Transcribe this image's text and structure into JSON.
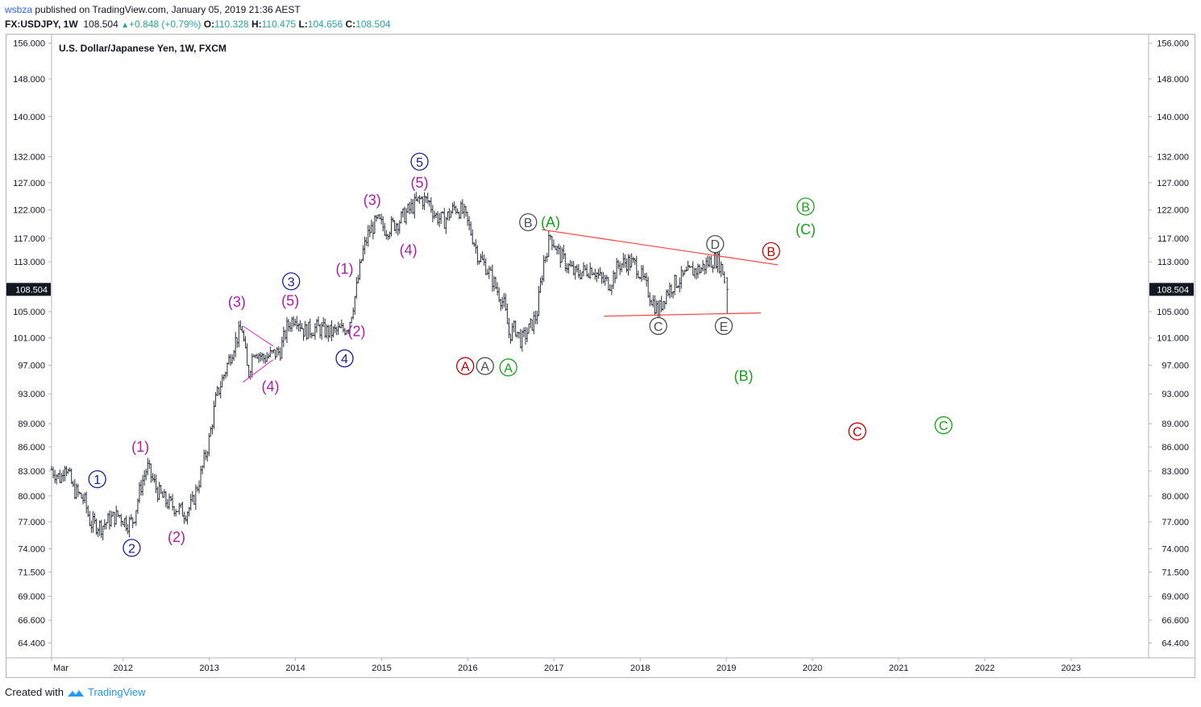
{
  "header": {
    "author": "wsbza",
    "published_text": "published on TradingView.com, January 05, 2019 21:36 AEST",
    "symbol": "FX:USDJPY, 1W",
    "last": "108.504",
    "change": "+0.848 (+0.79%)",
    "o_label": "O:",
    "o_value": "110.328",
    "h_label": "H:",
    "h_value": "110.475",
    "l_label": "L:",
    "l_value": "104.656",
    "c_label": "C:",
    "c_value": "108.504"
  },
  "footer": {
    "created_with": "Created with",
    "brand": "TradingView"
  },
  "colors": {
    "navy": "#131f8c",
    "magenta": "#b01aa7",
    "green": "#17a217",
    "red": "#c00000",
    "gray": "#4d4d4d",
    "trendline": "#ff4040",
    "bars": "#2a2e39",
    "price_tag": "#131722"
  },
  "chart_data": {
    "type": "ohlc",
    "title": "U.S. Dollar/Japanese Yen, 1W, FXCM",
    "price_scale": "log",
    "ylim": [
      63.0,
      158.0
    ],
    "y_ticks": [
      "156.000",
      "148.000",
      "140.000",
      "132.000",
      "127.000",
      "122.000",
      "117.000",
      "113.000",
      "108.504",
      "105.000",
      "101.000",
      "97.000",
      "93.000",
      "89.000",
      "86.000",
      "83.000",
      "80.000",
      "77.000",
      "74.000",
      "71.500",
      "69.000",
      "66.600",
      "64.400"
    ],
    "last_price_tag": "108.504",
    "xlim": [
      2011.17,
      2023.9
    ],
    "x_ticks": [
      {
        "label": "Mar",
        "t": 2011.17
      },
      {
        "label": "2012",
        "t": 2012.0
      },
      {
        "label": "2013",
        "t": 2013.0
      },
      {
        "label": "2014",
        "t": 2014.0
      },
      {
        "label": "2015",
        "t": 2015.0
      },
      {
        "label": "2016",
        "t": 2016.0
      },
      {
        "label": "2017",
        "t": 2017.0
      },
      {
        "label": "2018",
        "t": 2018.0
      },
      {
        "label": "2019",
        "t": 2019.0
      },
      {
        "label": "2020",
        "t": 2020.0
      },
      {
        "label": "2021",
        "t": 2021.0
      },
      {
        "label": "2022",
        "t": 2022.0
      },
      {
        "label": "2023",
        "t": 2023.0
      }
    ],
    "price_path": [
      [
        2011.17,
        83.2
      ],
      [
        2011.28,
        82.0
      ],
      [
        2011.32,
        84.2
      ],
      [
        2011.42,
        80.8
      ],
      [
        2011.55,
        79.5
      ],
      [
        2011.62,
        76.8
      ],
      [
        2011.75,
        76.5
      ],
      [
        2011.85,
        77.3
      ],
      [
        2011.95,
        77.8
      ],
      [
        2012.05,
        76.8
      ],
      [
        2012.12,
        77.2
      ],
      [
        2012.2,
        81.0
      ],
      [
        2012.28,
        83.5
      ],
      [
        2012.4,
        80.5
      ],
      [
        2012.5,
        79.3
      ],
      [
        2012.62,
        78.6
      ],
      [
        2012.72,
        78.0
      ],
      [
        2012.8,
        79.0
      ],
      [
        2012.9,
        82.5
      ],
      [
        2013.0,
        87.0
      ],
      [
        2013.08,
        92.5
      ],
      [
        2013.18,
        96.0
      ],
      [
        2013.3,
        100.5
      ],
      [
        2013.38,
        102.5
      ],
      [
        2013.45,
        95.5
      ],
      [
        2013.52,
        99.5
      ],
      [
        2013.62,
        98.0
      ],
      [
        2013.72,
        98.5
      ],
      [
        2013.82,
        99.0
      ],
      [
        2013.9,
        102.5
      ],
      [
        2014.0,
        104.5
      ],
      [
        2014.1,
        102.0
      ],
      [
        2014.25,
        102.5
      ],
      [
        2014.4,
        101.8
      ],
      [
        2014.55,
        102.2
      ],
      [
        2014.62,
        103.0
      ],
      [
        2014.7,
        108.0
      ],
      [
        2014.78,
        114.5
      ],
      [
        2014.85,
        118.0
      ],
      [
        2014.95,
        120.0
      ],
      [
        2015.05,
        118.5
      ],
      [
        2015.2,
        120.0
      ],
      [
        2015.35,
        122.5
      ],
      [
        2015.45,
        124.0
      ],
      [
        2015.55,
        123.5
      ],
      [
        2015.62,
        121.0
      ],
      [
        2015.72,
        120.0
      ],
      [
        2015.85,
        122.5
      ],
      [
        2015.95,
        121.5
      ],
      [
        2016.05,
        117.5
      ],
      [
        2016.12,
        114.0
      ],
      [
        2016.22,
        112.0
      ],
      [
        2016.32,
        109.0
      ],
      [
        2016.42,
        106.0
      ],
      [
        2016.48,
        101.5
      ],
      [
        2016.55,
        102.5
      ],
      [
        2016.62,
        100.5
      ],
      [
        2016.72,
        102.5
      ],
      [
        2016.8,
        104.5
      ],
      [
        2016.88,
        113.0
      ],
      [
        2016.96,
        117.5
      ],
      [
        2017.05,
        114.5
      ],
      [
        2017.15,
        112.5
      ],
      [
        2017.25,
        111.0
      ],
      [
        2017.35,
        111.5
      ],
      [
        2017.45,
        112.0
      ],
      [
        2017.55,
        110.0
      ],
      [
        2017.65,
        109.5
      ],
      [
        2017.75,
        112.5
      ],
      [
        2017.85,
        113.0
      ],
      [
        2017.95,
        112.5
      ],
      [
        2018.05,
        109.5
      ],
      [
        2018.15,
        106.5
      ],
      [
        2018.21,
        105.0
      ],
      [
        2018.3,
        108.0
      ],
      [
        2018.4,
        109.5
      ],
      [
        2018.5,
        110.5
      ],
      [
        2018.6,
        111.5
      ],
      [
        2018.7,
        111.8
      ],
      [
        2018.8,
        113.0
      ],
      [
        2018.88,
        113.5
      ],
      [
        2018.93,
        112.5
      ],
      [
        2018.97,
        111.0
      ],
      [
        2018.99,
        108.5
      ]
    ],
    "last_bar": {
      "t": 2019.01,
      "open": 110.328,
      "high": 110.475,
      "low": 104.656,
      "close": 108.504
    },
    "trendlines": [
      {
        "points": [
          [
            2016.86,
            118.5
          ],
          [
            2019.6,
            112.5
          ]
        ],
        "color": "#ff4040"
      },
      {
        "points": [
          [
            2017.58,
            104.3
          ],
          [
            2019.4,
            104.8
          ]
        ],
        "color": "#ff4040"
      },
      {
        "points": [
          [
            2013.39,
            102.8
          ],
          [
            2013.74,
            99.8
          ]
        ],
        "color": "#e040d0"
      },
      {
        "points": [
          [
            2013.39,
            94.6
          ],
          [
            2013.74,
            97.8
          ]
        ],
        "color": "#e040d0"
      }
    ],
    "wave_labels": [
      {
        "text": "1",
        "t": 2011.7,
        "p": 82.0,
        "color": "navy",
        "circle": true
      },
      {
        "text": "2",
        "t": 2012.1,
        "p": 74.1,
        "color": "navy",
        "circle": true
      },
      {
        "text": "(1)",
        "t": 2012.2,
        "p": 86.0,
        "color": "magenta",
        "circle": false
      },
      {
        "text": "(2)",
        "t": 2012.62,
        "p": 75.3,
        "color": "magenta",
        "circle": false
      },
      {
        "text": "(3)",
        "t": 2013.32,
        "p": 106.5,
        "color": "magenta",
        "circle": false
      },
      {
        "text": "(4)",
        "t": 2013.71,
        "p": 94.0,
        "color": "magenta",
        "circle": false
      },
      {
        "text": "3",
        "t": 2013.95,
        "p": 109.8,
        "color": "navy",
        "circle": true
      },
      {
        "text": "(5)",
        "t": 2013.94,
        "p": 106.7,
        "color": "magenta",
        "circle": false
      },
      {
        "text": "4",
        "t": 2014.57,
        "p": 98.0,
        "color": "navy",
        "circle": true
      },
      {
        "text": "(1)",
        "t": 2014.57,
        "p": 111.8,
        "color": "magenta",
        "circle": false
      },
      {
        "text": "(2)",
        "t": 2014.71,
        "p": 102.0,
        "color": "magenta",
        "circle": false
      },
      {
        "text": "(3)",
        "t": 2014.89,
        "p": 123.8,
        "color": "magenta",
        "circle": false
      },
      {
        "text": "(4)",
        "t": 2015.31,
        "p": 115.0,
        "color": "magenta",
        "circle": false
      },
      {
        "text": "5",
        "t": 2015.44,
        "p": 131.0,
        "color": "navy",
        "circle": true
      },
      {
        "text": "(5)",
        "t": 2015.44,
        "p": 127.0,
        "color": "magenta",
        "circle": false
      },
      {
        "text": "A",
        "t": 2015.97,
        "p": 96.9,
        "color": "red",
        "circle": true
      },
      {
        "text": "A",
        "t": 2016.2,
        "p": 96.9,
        "color": "gray",
        "circle": true
      },
      {
        "text": "A",
        "t": 2016.47,
        "p": 96.7,
        "color": "green",
        "circle": true
      },
      {
        "text": "B",
        "t": 2016.7,
        "p": 119.8,
        "color": "gray",
        "circle": true
      },
      {
        "text": "(A)",
        "t": 2016.96,
        "p": 119.8,
        "color": "green",
        "circle": false
      },
      {
        "text": "C",
        "t": 2018.21,
        "p": 102.8,
        "color": "gray",
        "circle": true
      },
      {
        "text": "D",
        "t": 2018.87,
        "p": 116.0,
        "color": "gray",
        "circle": true
      },
      {
        "text": "E",
        "t": 2018.97,
        "p": 102.8,
        "color": "gray",
        "circle": true
      },
      {
        "text": "B",
        "t": 2019.52,
        "p": 114.8,
        "color": "red",
        "circle": true
      },
      {
        "text": "(B)",
        "t": 2019.2,
        "p": 95.5,
        "color": "green",
        "circle": false
      },
      {
        "text": "B",
        "t": 2019.92,
        "p": 122.6,
        "color": "green",
        "circle": true
      },
      {
        "text": "(C)",
        "t": 2019.92,
        "p": 118.5,
        "color": "green",
        "circle": false
      },
      {
        "text": "C",
        "t": 2020.52,
        "p": 88.0,
        "color": "red",
        "circle": true
      },
      {
        "text": "C",
        "t": 2021.52,
        "p": 88.8,
        "color": "green",
        "circle": true
      }
    ]
  }
}
